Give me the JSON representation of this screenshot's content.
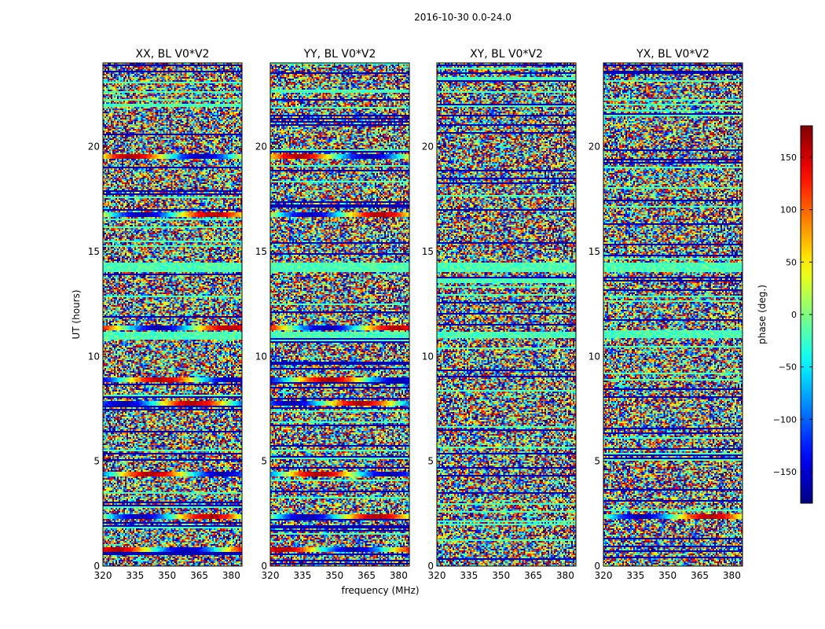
{
  "figure": {
    "suptitle": "2016-10-30 0.0-24.0"
  },
  "chart_data": {
    "type": "heatmap",
    "ylabel": "UT (hours)",
    "xlabel": "frequency (MHz)",
    "xlim": [
      320,
      385
    ],
    "ylim": [
      0,
      24
    ],
    "xticks": [
      "320",
      "335",
      "350",
      "365",
      "380"
    ],
    "yticks": [
      "0",
      "5",
      "10",
      "15",
      "20"
    ],
    "panels": [
      {
        "title": "XX, BL V0*V2",
        "coherent_bands_hours": [
          0.8,
          2.4,
          4.4,
          7.8,
          8.9,
          11.4,
          16.8,
          19.6
        ]
      },
      {
        "title": "YY, BL V0*V2",
        "coherent_bands_hours": [
          0.8,
          2.4,
          4.4,
          7.8,
          8.9,
          11.4,
          16.8,
          19.6
        ]
      },
      {
        "title": "XY, BL V0*V2",
        "coherent_bands_hours": []
      },
      {
        "title": "YX, BL V0*V2",
        "coherent_bands_hours": [
          2.4
        ]
      }
    ],
    "colorbar": {
      "label": "phase (deg.)",
      "range": [
        -180,
        180
      ],
      "ticks": [
        "150",
        "100",
        "50",
        "0",
        "−50",
        "−100",
        "−150"
      ],
      "tick_values": [
        150,
        100,
        50,
        0,
        -50,
        -100,
        -150
      ],
      "colormap": "jet"
    }
  }
}
